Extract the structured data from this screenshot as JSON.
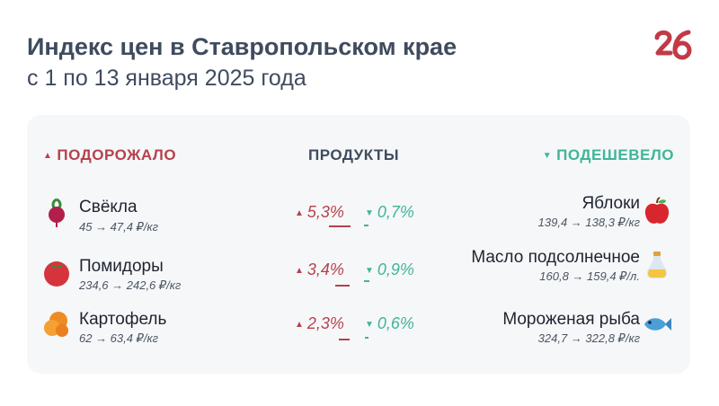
{
  "header": {
    "title": "Индекс цен в Ставропольском крае",
    "subtitle": "с 1 по 13 января 2025 года",
    "logo_text": "26"
  },
  "columns": {
    "up_label": "ПОДОРОЖАЛО",
    "middle_label": "ПРОДУКТЫ",
    "down_label": "ПОДЕШЕВЕЛО"
  },
  "rows": [
    {
      "up": {
        "name": "Свёкла",
        "price": "45 → 47,4 ₽/кг",
        "icon": "beet-icon"
      },
      "up_change": "5,3%",
      "down_change": "0,7%",
      "down": {
        "name": "Яблоки",
        "price": "139,4 → 138,3 ₽/кг",
        "icon": "apple-icon"
      }
    },
    {
      "up": {
        "name": "Помидоры",
        "price": "234,6 → 242,6 ₽/кг",
        "icon": "tomato-icon"
      },
      "up_change": "3,4%",
      "down_change": "0,9%",
      "down": {
        "name": "Масло подсолнечное",
        "price": "160,8 → 159,4 ₽/л.",
        "icon": "oil-bottle-icon"
      }
    },
    {
      "up": {
        "name": "Картофель",
        "price": "62 → 63,4 ₽/кг",
        "icon": "potato-icon"
      },
      "up_change": "2,3%",
      "down_change": "0,6%",
      "down": {
        "name": "Мороженая рыба",
        "price": "324,7 → 322,8 ₽/кг",
        "icon": "fish-icon"
      }
    }
  ],
  "colors": {
    "up": "#b5424e",
    "down": "#3fb59a",
    "text": "#3f4b5e",
    "card": "#f6f7f8"
  }
}
